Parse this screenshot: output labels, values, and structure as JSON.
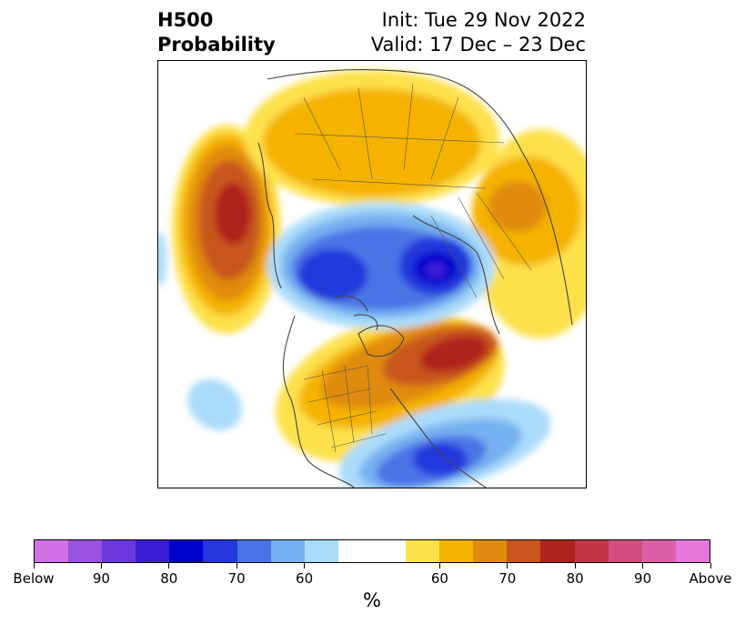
{
  "title": {
    "left_line1": "H500",
    "left_line2": "Probability",
    "right_line1": "Init: Tue 29 Nov 2022",
    "right_line2": "Valid: 17 Dec – 23 Dec"
  },
  "colorbar": {
    "below_colors": [
      "#d270e6",
      "#9a52e0",
      "#6a38dc",
      "#3a1ed6",
      "#0000cc",
      "#2438dc",
      "#4b73e6",
      "#76b0f0",
      "#aadcfa"
    ],
    "neutral_color": "#ffffff",
    "above_colors": [
      "#fde14b",
      "#f5b300",
      "#e08b10",
      "#c8561c",
      "#b0221e",
      "#c23448",
      "#d24f80",
      "#dc60a8",
      "#e678dc"
    ],
    "tick_labels": [
      "Below",
      "90",
      "80",
      "70",
      "60",
      "60",
      "70",
      "80",
      "90",
      "Above"
    ],
    "unit": "%"
  },
  "map": {
    "projection": "north-polar-stereographic",
    "field": "500 hPa height anomaly probability"
  }
}
